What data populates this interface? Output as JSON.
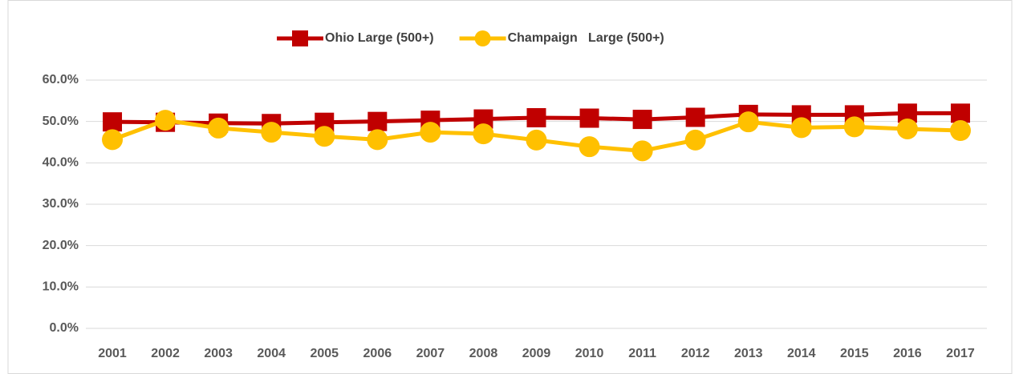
{
  "chart_data": {
    "type": "line",
    "categories": [
      "2001",
      "2002",
      "2003",
      "2004",
      "2005",
      "2006",
      "2007",
      "2008",
      "2009",
      "2010",
      "2011",
      "2012",
      "2013",
      "2014",
      "2015",
      "2016",
      "2017"
    ],
    "series": [
      {
        "name": "Ohio Large (500+)",
        "color": "#c00000",
        "marker": "square",
        "values": [
          49.9,
          49.8,
          49.6,
          49.5,
          49.8,
          50.0,
          50.3,
          50.6,
          50.9,
          50.8,
          50.5,
          51.0,
          51.7,
          51.6,
          51.6,
          52.0,
          52.0
        ]
      },
      {
        "name": "Champaign   Large (500+)",
        "color": "#ffc000",
        "marker": "circle",
        "values": [
          45.6,
          50.3,
          48.4,
          47.4,
          46.4,
          45.6,
          47.4,
          47.0,
          45.5,
          43.9,
          42.9,
          45.5,
          49.9,
          48.5,
          48.7,
          48.2,
          47.8
        ]
      }
    ],
    "ylim": [
      0,
      60
    ],
    "yticks": [
      {
        "value": 0,
        "label": "0.0%"
      },
      {
        "value": 10,
        "label": "10.0%"
      },
      {
        "value": 20,
        "label": "20.0%"
      },
      {
        "value": 30,
        "label": "30.0%"
      },
      {
        "value": 40,
        "label": "40.0%"
      },
      {
        "value": 50,
        "label": "50.0%"
      },
      {
        "value": 60,
        "label": "60.0%"
      }
    ],
    "grid": true,
    "legend": "top"
  }
}
